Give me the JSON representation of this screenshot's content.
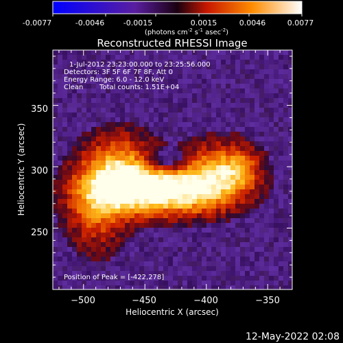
{
  "colorbar": {
    "ticks": [
      "-0.0077",
      "-0.0046",
      "-0.0015",
      "0.0015",
      "0.0046",
      "0.0077"
    ],
    "units_main": "(photons cm",
    "units_sup1": "-2",
    "units_mid": " s",
    "units_sup2": "-1",
    "units_end": " asec",
    "units_sup3": "-2",
    "units_close": ")",
    "range": [
      -0.0077,
      0.0077
    ]
  },
  "footer": {
    "timestamp": "12-May-2022 02:08"
  },
  "chart_data": {
    "type": "heatmap",
    "title": "Reconstructed RHESSI Image",
    "xlabel": "Heliocentric X (arcsec)",
    "ylabel": "Heliocentric Y (arcsec)",
    "xlim": [
      -525,
      -330
    ],
    "ylim": [
      200,
      395
    ],
    "x_ticks": [
      -500,
      -450,
      -400,
      -350
    ],
    "y_ticks": [
      250,
      300,
      350
    ],
    "annotations": {
      "time_range": "1-Jul-2012 23:23:00.000 to 23:25:56.000",
      "detectors": "Detectors: 3F 5F 6F 7F 8F, Att 0",
      "energy": "Energy Range: 6.0 - 12.0 keV",
      "clean_label": "Clean",
      "total_counts": "Total counts: 1.51E+04",
      "peak": "Position of Peak = [-422,278]"
    },
    "peak": [
      -422,
      278
    ],
    "vmin": -0.0077,
    "vmax": 0.0077,
    "grid": false
  }
}
